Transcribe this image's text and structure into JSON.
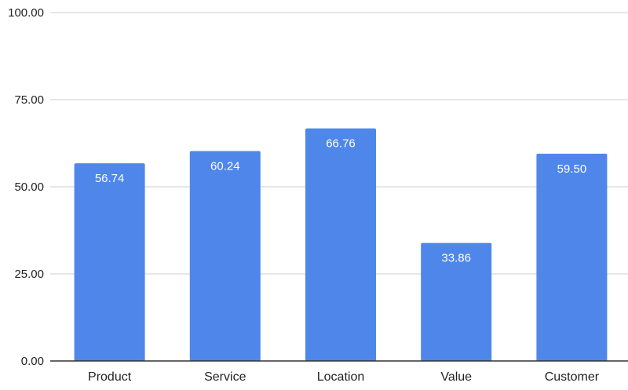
{
  "chart_data": {
    "type": "bar",
    "title": "",
    "xlabel": "",
    "ylabel": "",
    "categories": [
      "Product",
      "Service",
      "Location",
      "Value",
      "Customer"
    ],
    "values": [
      56.74,
      60.24,
      66.76,
      33.86,
      59.5
    ],
    "value_labels": [
      "56.74",
      "60.24",
      "66.76",
      "33.86",
      "59.50"
    ],
    "ylim": [
      0,
      100
    ],
    "yticks": [
      0,
      25,
      50,
      75,
      100
    ],
    "ytick_labels": [
      "0.00",
      "25.00",
      "50.00",
      "75.00",
      "100.00"
    ],
    "grid": true,
    "legend": "none",
    "bar_color": "#4f86ea"
  }
}
